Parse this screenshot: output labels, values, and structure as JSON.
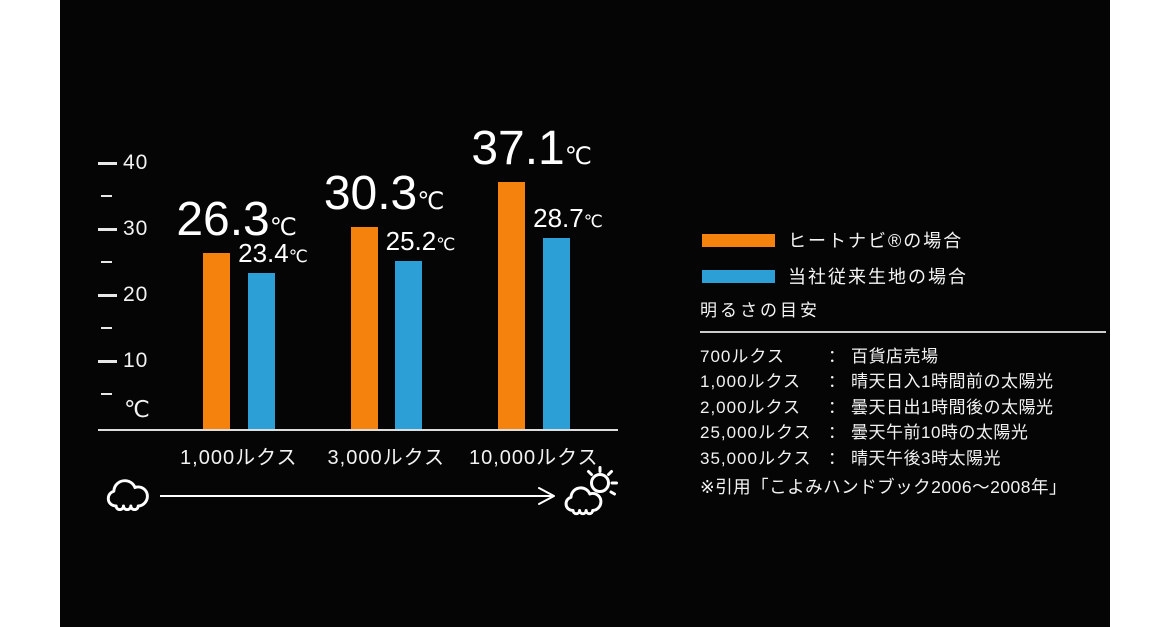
{
  "chart_data": {
    "type": "bar",
    "categories": [
      "1,000ルクス",
      "3,000ルクス",
      "10,000ルクス"
    ],
    "series": [
      {
        "name": "ヒートナビ®の場合",
        "color": "#F5820D",
        "values": [
          26.3,
          30.3,
          37.1
        ]
      },
      {
        "name": "当社従来生地の場合",
        "color": "#2B9FD6",
        "values": [
          23.4,
          25.2,
          28.7
        ]
      }
    ],
    "value_unit": "℃",
    "y_axis": {
      "unit_label": "℃",
      "major_ticks": [
        40,
        30,
        20,
        10
      ],
      "minor_ticks": [
        35,
        25,
        15,
        5
      ],
      "range": [
        0,
        43
      ],
      "grid": false
    },
    "x_axis_icons": {
      "left_icon": "cloud-icon",
      "right_icon": "sun-behind-cloud-icon"
    },
    "legend_position": "right"
  },
  "guide": {
    "title": "明るさの目安",
    "separator": "：",
    "rows": [
      {
        "lux": "700ルクス",
        "desc": "百貨店売場"
      },
      {
        "lux": "1,000ルクス",
        "desc": "晴天日入1時間前の太陽光"
      },
      {
        "lux": "2,000ルクス",
        "desc": "曇天日出1時間後の太陽光"
      },
      {
        "lux": "25,000ルクス",
        "desc": "曇天午前10時の太陽光"
      },
      {
        "lux": "35,000ルクス",
        "desc": "晴天午後3時太陽光"
      }
    ],
    "note": "※引用「こよみハンドブック2006〜2008年」"
  },
  "colors": {
    "page_margin": "#FFFFFF",
    "panel_background": "#050505",
    "text": "#FFFFFF",
    "axis": "#DDDDDD",
    "heatnavi_orange": "#F5820D",
    "conventional_blue": "#2B9FD6"
  }
}
